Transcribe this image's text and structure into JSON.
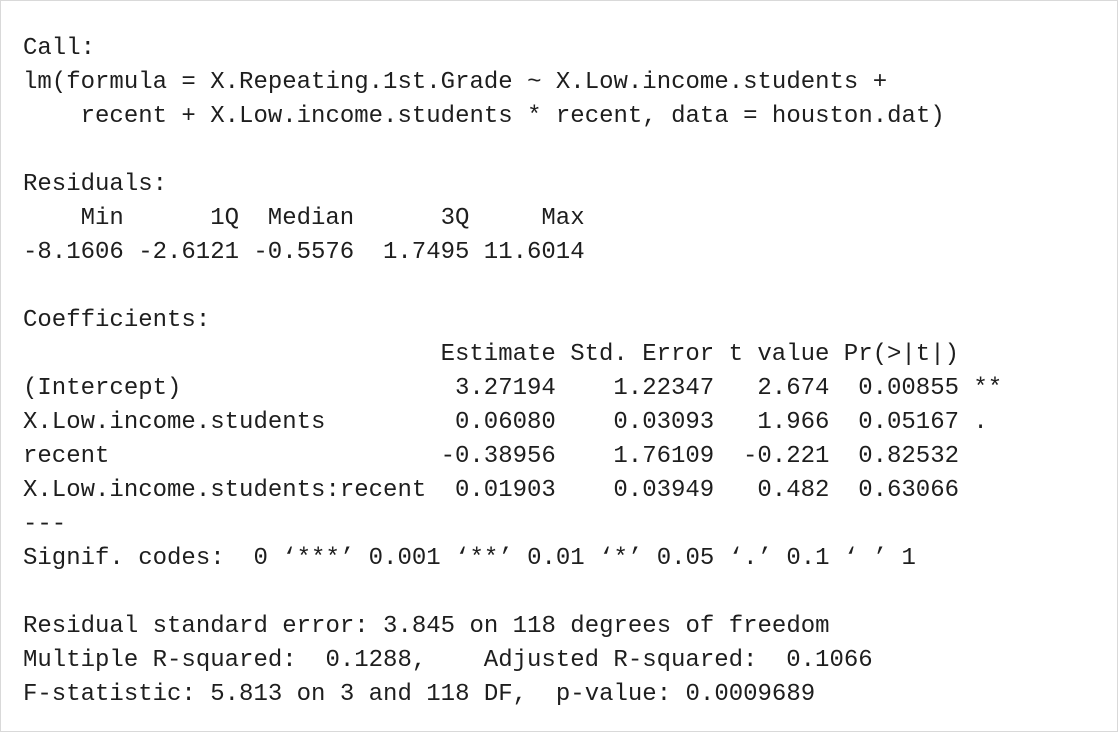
{
  "call": {
    "label": "Call:",
    "lines": [
      "lm(formula = X.Repeating.1st.Grade ~ X.Low.income.students +",
      "    recent + X.Low.income.students * recent, data = houston.dat)"
    ]
  },
  "residuals": {
    "label": "Residuals:",
    "headers": [
      "Min",
      "1Q",
      "Median",
      "3Q",
      "Max"
    ],
    "values": [
      "-8.1606",
      "-2.6121",
      "-0.5576",
      "1.7495",
      "11.6014"
    ]
  },
  "coefficients": {
    "label": "Coefficients:",
    "columns": [
      "Estimate",
      "Std. Error",
      "t value",
      "Pr(>|t|)"
    ],
    "rows": [
      {
        "name": "(Intercept)",
        "cells": [
          "3.27194",
          "1.22347",
          "2.674",
          "0.00855"
        ],
        "signif": "**"
      },
      {
        "name": "X.Low.income.students",
        "cells": [
          "0.06080",
          "0.03093",
          "1.966",
          "0.05167"
        ],
        "signif": "."
      },
      {
        "name": "recent",
        "cells": [
          "-0.38956",
          "1.76109",
          "-0.221",
          "0.82532"
        ],
        "signif": null
      },
      {
        "name": "X.Low.income.students:recent",
        "cells": [
          "0.01903",
          "0.03949",
          "0.482",
          "0.63066"
        ],
        "signif": null
      }
    ],
    "separator": "---",
    "signif_codes": "Signif. codes:  0 ‘***’ 0.001 ‘**’ 0.01 ‘*’ 0.05 ‘.’ 0.1 ‘ ’ 1"
  },
  "summary": {
    "residual_se": "Residual standard error: 3.845 on 118 degrees of freedom",
    "r_squared": "Multiple R-squared:  0.1288,",
    "adj_r_squared": "Adjusted R-squared:  0.1066",
    "f_statistic": "F-statistic: 5.813 on 3 and 118 DF,  p-value: 0.0009689"
  }
}
